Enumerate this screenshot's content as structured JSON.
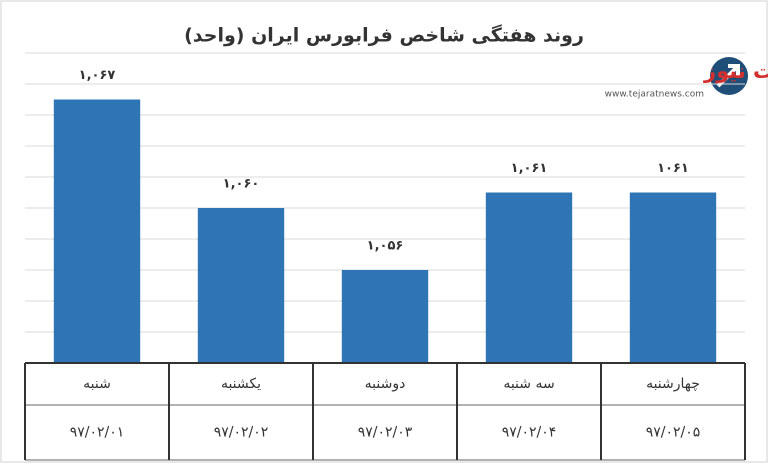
{
  "logo": {
    "name": "تجارت نیوز",
    "url": "www.tejaratnews.com"
  },
  "chart_data": {
    "type": "bar",
    "title": "روند هفتگی شاخص فرابورس ایران (واحد)",
    "categories": [
      "شنبه",
      "یکشنبه",
      "دوشنبه",
      "سه شنبه",
      "چهارشنبه"
    ],
    "dates": [
      "۹۷/۰۲/۰۱",
      "۹۷/۰۲/۰۲",
      "۹۷/۰۲/۰۳",
      "۹۷/۰۲/۰۴",
      "۹۷/۰۲/۰۵"
    ],
    "values": [
      1067,
      1060,
      1056,
      1061,
      1061
    ],
    "value_labels": [
      "۱,۰۶۷",
      "۱,۰۶۰",
      "۱,۰۵۶",
      "۱,۰۶۱",
      "۱۰۶۱"
    ],
    "color": "#2e75b6",
    "ylim": [
      1050,
      1070
    ],
    "yticks": [
      1050,
      1052,
      1054,
      1056,
      1058,
      1060,
      1062,
      1064,
      1066,
      1068,
      1070
    ],
    "grid": true
  }
}
